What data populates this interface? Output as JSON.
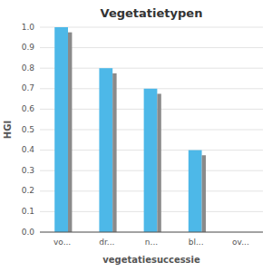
{
  "chart_data": {
    "type": "bar",
    "title": "Vegetatietypen",
    "xlabel": "vegetatiesuccessie",
    "ylabel": "HGI",
    "categories": [
      "vo...",
      "dr...",
      "n...",
      "bl...",
      "ov..."
    ],
    "series": [
      {
        "color": "#4DB8E8",
        "values": [
          1.0,
          0.8,
          0.7,
          0.4,
          0.0
        ]
      },
      {
        "color": "#8A8A8A",
        "values": [
          0.975,
          0.775,
          0.675,
          0.375,
          0.0
        ]
      }
    ],
    "ylim": [
      0.0,
      1.0
    ],
    "yticks": [
      {
        "value": 0.0,
        "label": "0.0"
      },
      0.1,
      0.2,
      0.3,
      0.4,
      0.5,
      0.6,
      0.7,
      0.8,
      0.9,
      {
        "value": 1.0,
        "label": "1.0"
      }
    ],
    "grid": true
  }
}
